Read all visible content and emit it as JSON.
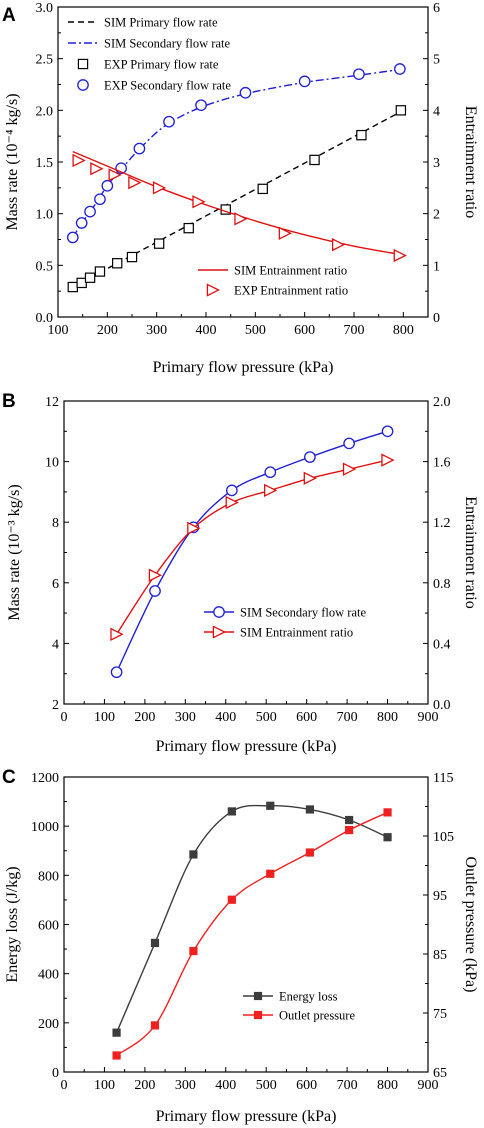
{
  "chart_data": [
    {
      "panel": "A",
      "type": "line",
      "xlabel": "Primary flow pressure (kPa)",
      "ylabel": "Mass rate (10⁻⁴ kg/s)",
      "y2label": "Entrainment ratio",
      "xlim": [
        100,
        850
      ],
      "ylim": [
        0,
        3.0
      ],
      "y2lim": [
        0,
        6
      ],
      "xticks": [
        100,
        200,
        300,
        400,
        500,
        600,
        700,
        800
      ],
      "yticks": [
        0.0,
        0.5,
        1.0,
        1.5,
        2.0,
        2.5,
        3.0
      ],
      "y2ticks": [
        0,
        1,
        2,
        3,
        4,
        5,
        6
      ],
      "legend_position": "upper-left and lower-right",
      "series": [
        {
          "name": "SIM Primary flow rate",
          "axis": "left",
          "style": "dashed",
          "color": "#000000",
          "x": [
            130,
            800
          ],
          "y": [
            0.29,
            2.0
          ]
        },
        {
          "name": "SIM Secondary flow rate",
          "axis": "left",
          "style": "dashdot",
          "color": "#1f1fd6",
          "x": [
            130,
            150,
            170,
            200,
            230,
            270,
            320,
            390,
            480,
            600,
            710,
            800
          ],
          "y": [
            0.77,
            0.92,
            1.05,
            1.27,
            1.44,
            1.65,
            1.86,
            2.03,
            2.16,
            2.27,
            2.34,
            2.4
          ]
        },
        {
          "name": "EXP Primary flow rate",
          "axis": "left",
          "marker": "square",
          "color": "#000000",
          "x": [
            130,
            148,
            165,
            185,
            220,
            250,
            305,
            365,
            440,
            515,
            620,
            715,
            795
          ],
          "y": [
            0.29,
            0.33,
            0.38,
            0.44,
            0.52,
            0.58,
            0.71,
            0.86,
            1.04,
            1.24,
            1.52,
            1.76,
            2.0
          ]
        },
        {
          "name": "EXP Secondary flow rate",
          "axis": "left",
          "marker": "circle",
          "color": "#1f1fd6",
          "x": [
            130,
            148,
            165,
            185,
            200,
            228,
            265,
            325,
            390,
            480,
            600,
            710,
            793
          ],
          "y": [
            0.77,
            0.91,
            1.02,
            1.14,
            1.27,
            1.44,
            1.63,
            1.89,
            2.05,
            2.17,
            2.28,
            2.35,
            2.4
          ]
        },
        {
          "name": "SIM Entrainment ratio",
          "axis": "right",
          "style": "solid",
          "color": "#e01010",
          "x": [
            130,
            200,
            300,
            400,
            500,
            600,
            700,
            800
          ],
          "y": [
            3.2,
            2.92,
            2.52,
            2.17,
            1.86,
            1.59,
            1.37,
            1.2
          ]
        },
        {
          "name": "EXP Entrainment ratio",
          "axis": "right",
          "marker": "triangle-right",
          "color": "#e01010",
          "x": [
            142,
            178,
            215,
            255,
            305,
            385,
            470,
            560,
            668,
            793
          ],
          "y": [
            3.03,
            2.87,
            2.75,
            2.6,
            2.5,
            2.23,
            1.9,
            1.62,
            1.4,
            1.19
          ]
        }
      ]
    },
    {
      "panel": "B",
      "type": "line",
      "xlabel": "Primary flow pressure (kPa)",
      "ylabel": "Mass rate (10⁻³ kg/s)",
      "y2label": "Entrainment ratio",
      "xlim": [
        0,
        900
      ],
      "ylim": [
        2,
        12
      ],
      "y2lim": [
        0.0,
        2.0
      ],
      "xticks": [
        0,
        100,
        200,
        300,
        400,
        500,
        600,
        700,
        800,
        900
      ],
      "yticks": [
        2,
        4,
        6,
        8,
        10,
        12
      ],
      "y2ticks": [
        0.0,
        0.4,
        0.8,
        1.2,
        1.6,
        2.0
      ],
      "legend_position": "lower-right",
      "series": [
        {
          "name": "SIM Secondary flow rate",
          "axis": "left",
          "marker": "circle",
          "color": "#1f1fd6",
          "x": [
            130,
            225,
            320,
            415,
            510,
            608,
            705,
            800
          ],
          "y": [
            3.05,
            5.73,
            7.83,
            9.05,
            9.65,
            10.15,
            10.6,
            11.0
          ]
        },
        {
          "name": "SIM Entrainment ratio",
          "axis": "right",
          "marker": "triangle-right",
          "color": "#e01010",
          "x": [
            130,
            225,
            320,
            415,
            510,
            608,
            705,
            800
          ],
          "y": [
            0.46,
            0.85,
            1.16,
            1.33,
            1.41,
            1.49,
            1.55,
            1.61
          ]
        }
      ]
    },
    {
      "panel": "C",
      "type": "line",
      "xlabel": "Primary flow pressure (kPa)",
      "ylabel": "Energy loss (J/kg)",
      "y2label": "Outlet pressure (kPa)",
      "xlim": [
        0,
        900
      ],
      "ylim": [
        0,
        1200
      ],
      "y2lim": [
        65,
        115
      ],
      "xticks": [
        0,
        100,
        200,
        300,
        400,
        500,
        600,
        700,
        800,
        900
      ],
      "yticks": [
        0,
        200,
        400,
        600,
        800,
        1000,
        1200
      ],
      "y2ticks": [
        65,
        75,
        85,
        95,
        105,
        115
      ],
      "legend_position": "lower-right",
      "series": [
        {
          "name": "Energy loss",
          "axis": "left",
          "marker": "square",
          "color": "#3c3c3c",
          "x": [
            130,
            225,
            320,
            415,
            510,
            608,
            705,
            800
          ],
          "y": [
            160,
            525,
            885,
            1060,
            1083,
            1068,
            1025,
            955
          ]
        },
        {
          "name": "Outlet pressure",
          "axis": "right",
          "marker": "square",
          "color": "#f02020",
          "x": [
            130,
            225,
            320,
            415,
            510,
            608,
            705,
            800
          ],
          "y": [
            67.8,
            72.9,
            85.5,
            94.2,
            98.6,
            102.2,
            106.0,
            109.0
          ]
        }
      ]
    }
  ]
}
